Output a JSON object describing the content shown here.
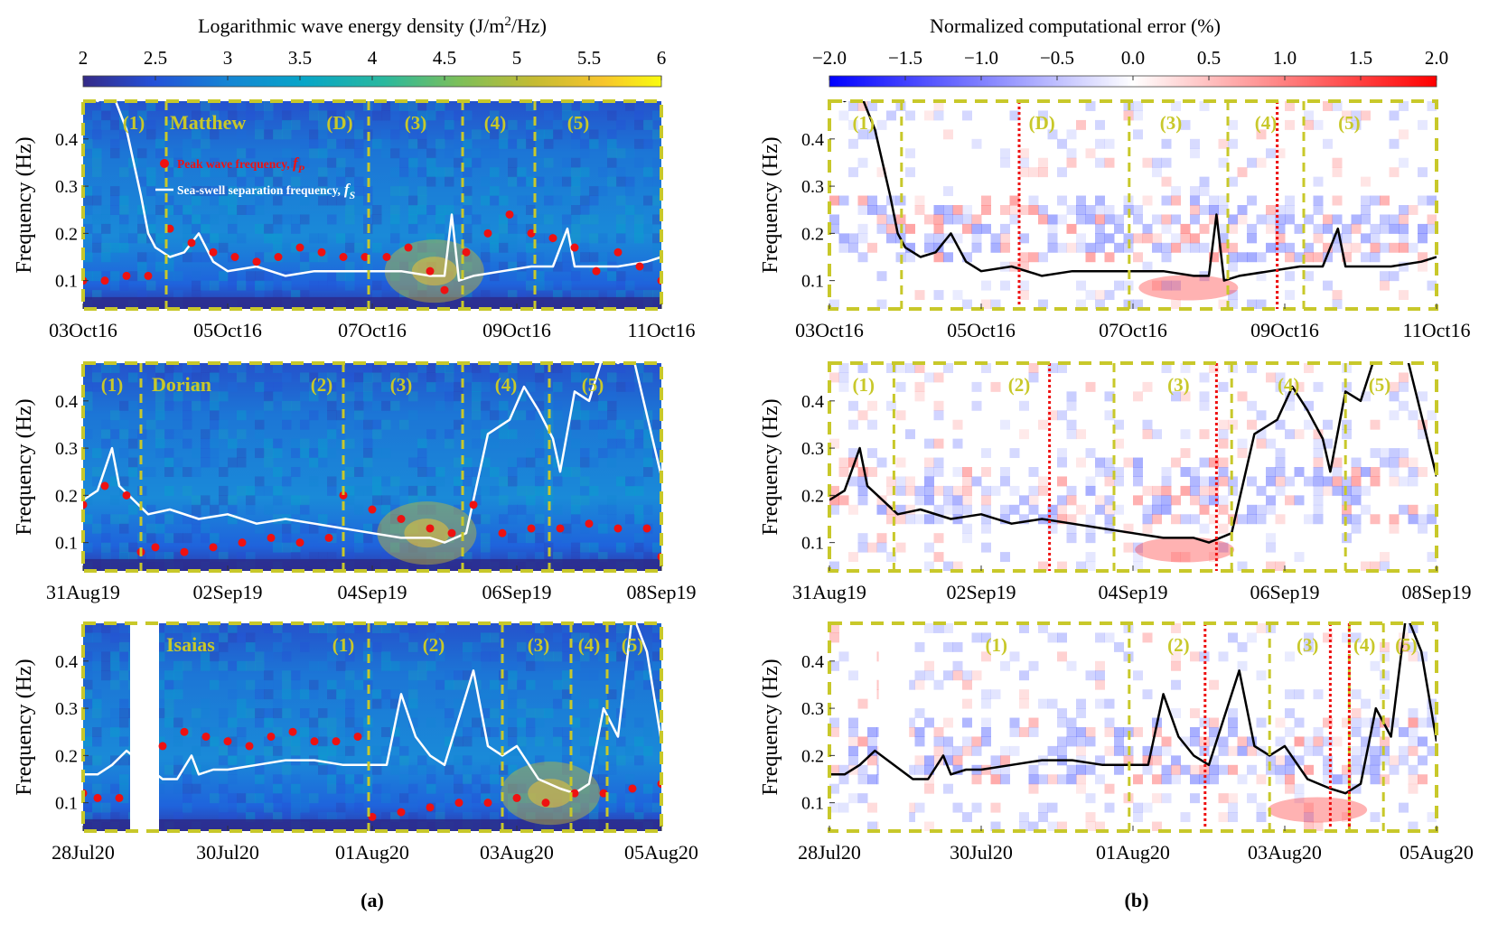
{
  "figure": {
    "left_colorbar": {
      "title_text": "Logarithmic wave energy density (J/m",
      "title_sup": "2",
      "title_tail": "/Hz)",
      "ticks": [
        "2",
        "2.5",
        "3",
        "3.5",
        "4",
        "4.5",
        "5",
        "5.5",
        "6"
      ]
    },
    "right_colorbar": {
      "title": "Normalized computational error (%)",
      "ticks": [
        "−2.0",
        "−1.5",
        "−1.0",
        "−0.5",
        "0.0",
        "0.5",
        "1.0",
        "1.5",
        "2.0"
      ]
    },
    "ylabel": "Frequency (Hz)",
    "yticks": [
      "0.1",
      "0.2",
      "0.3",
      "0.4"
    ],
    "panel_a_label": "(a)",
    "panel_b_label": "(b)",
    "legend": {
      "peak_text": "Peak wave frequency, ",
      "peak_sym": "f",
      "peak_sub": "P",
      "sep_text": "Sea-swell separation frequency,",
      "sep_sym": "f",
      "sep_sub": "S"
    },
    "colors": {
      "frame": "#c8c82a",
      "stage_label": "#c8c82a",
      "peak_marker": "#ee1111",
      "sep_line_a": "#ffffff",
      "sep_line_b": "#000000",
      "red_divider": "#ee1111"
    }
  },
  "chart_data": [
    {
      "type": "heatmap",
      "panel": "a",
      "row": 0,
      "storm": "Matthew",
      "xticks": [
        "03Oct16",
        "05Oct16",
        "07Oct16",
        "09Oct16",
        "11Oct16"
      ],
      "xlim_days": [
        0,
        8
      ],
      "ylim": [
        0.04,
        0.48
      ],
      "stage_boundaries_days": [
        1.85,
        7.85
      ],
      "dividers_days": [
        1.15,
        3.95,
        5.25,
        6.25
      ],
      "stage_labels": [
        {
          "text": "(1)",
          "day": 0.7
        },
        {
          "text": "(D)",
          "day": 3.55
        },
        {
          "text": "(3)",
          "day": 4.6
        },
        {
          "text": "(4)",
          "day": 5.7
        },
        {
          "text": "(5)",
          "day": 6.85
        }
      ],
      "peak_frequency": {
        "x_days": [
          0.0,
          0.3,
          0.6,
          0.9,
          1.2,
          1.5,
          1.8,
          2.1,
          2.4,
          2.7,
          3.0,
          3.3,
          3.6,
          3.9,
          4.2,
          4.5,
          4.8,
          5.0,
          5.3,
          5.6,
          5.9,
          6.2,
          6.5,
          6.8,
          7.1,
          7.4,
          7.7,
          8.0
        ],
        "values": [
          0.1,
          0.1,
          0.11,
          0.11,
          0.21,
          0.18,
          0.16,
          0.15,
          0.14,
          0.15,
          0.17,
          0.16,
          0.15,
          0.15,
          0.15,
          0.17,
          0.12,
          0.08,
          0.16,
          0.2,
          0.24,
          0.2,
          0.19,
          0.17,
          0.12,
          0.16,
          0.13,
          0.1
        ]
      },
      "separation_frequency": {
        "x_days": [
          0.0,
          0.2,
          0.4,
          0.6,
          0.8,
          0.9,
          1.0,
          1.2,
          1.4,
          1.6,
          1.8,
          2.0,
          2.4,
          2.8,
          3.2,
          3.6,
          4.0,
          4.4,
          4.8,
          5.0,
          5.1,
          5.2,
          5.4,
          5.8,
          6.2,
          6.5,
          6.7,
          6.8,
          7.0,
          7.4,
          7.8,
          8.0
        ],
        "values": [
          0.5,
          0.48,
          0.5,
          0.42,
          0.28,
          0.2,
          0.17,
          0.15,
          0.16,
          0.2,
          0.14,
          0.12,
          0.13,
          0.11,
          0.12,
          0.12,
          0.12,
          0.12,
          0.11,
          0.11,
          0.24,
          0.1,
          0.11,
          0.12,
          0.13,
          0.13,
          0.21,
          0.13,
          0.13,
          0.13,
          0.14,
          0.15
        ]
      }
    },
    {
      "type": "heatmap",
      "panel": "a",
      "row": 1,
      "storm": "Dorian",
      "xticks": [
        "31Aug19",
        "02Sep19",
        "04Sep19",
        "06Sep19",
        "08Sep19"
      ],
      "xlim_days": [
        0,
        8
      ],
      "ylim": [
        0.04,
        0.48
      ],
      "stage_boundaries_days": [
        1.85,
        7.85
      ],
      "dividers_days": [
        0.8,
        3.6,
        5.25,
        6.45
      ],
      "stage_labels": [
        {
          "text": "(1)",
          "day": 0.4
        },
        {
          "text": "(2)",
          "day": 3.3
        },
        {
          "text": "(3)",
          "day": 4.4
        },
        {
          "text": "(4)",
          "day": 5.85
        },
        {
          "text": "(5)",
          "day": 7.05
        }
      ],
      "peak_frequency": {
        "x_days": [
          0.0,
          0.3,
          0.6,
          0.8,
          1.0,
          1.4,
          1.8,
          2.2,
          2.6,
          3.0,
          3.4,
          3.6,
          4.0,
          4.4,
          4.8,
          5.1,
          5.4,
          5.8,
          6.2,
          6.6,
          7.0,
          7.4,
          7.8,
          8.0
        ],
        "values": [
          0.18,
          0.22,
          0.2,
          0.08,
          0.09,
          0.08,
          0.09,
          0.1,
          0.11,
          0.1,
          0.11,
          0.2,
          0.17,
          0.15,
          0.13,
          0.12,
          0.18,
          0.12,
          0.13,
          0.13,
          0.14,
          0.13,
          0.13,
          0.07
        ]
      },
      "separation_frequency": {
        "x_days": [
          0.0,
          0.2,
          0.4,
          0.5,
          0.7,
          0.9,
          1.2,
          1.6,
          2.0,
          2.4,
          2.8,
          3.2,
          3.6,
          4.0,
          4.4,
          4.8,
          5.0,
          5.3,
          5.6,
          5.9,
          6.1,
          6.3,
          6.5,
          6.6,
          6.8,
          7.0,
          7.2,
          7.4,
          7.6,
          8.0
        ],
        "values": [
          0.19,
          0.21,
          0.3,
          0.22,
          0.19,
          0.16,
          0.17,
          0.15,
          0.16,
          0.14,
          0.15,
          0.14,
          0.13,
          0.12,
          0.11,
          0.11,
          0.1,
          0.12,
          0.33,
          0.36,
          0.43,
          0.38,
          0.32,
          0.25,
          0.42,
          0.4,
          0.5,
          0.48,
          0.5,
          0.24
        ]
      }
    },
    {
      "type": "heatmap",
      "panel": "a",
      "row": 2,
      "storm": "Isaias",
      "xticks": [
        "28Jul20",
        "30Jul20",
        "01Aug20",
        "03Aug20",
        "05Aug20"
      ],
      "xlim_days": [
        0,
        8
      ],
      "ylim": [
        0.04,
        0.48
      ],
      "data_gap_days": [
        0.65,
        1.05
      ],
      "stage_boundaries_days": [
        0.05,
        7.95
      ],
      "dividers_days": [
        3.95,
        5.8,
        6.75,
        7.25
      ],
      "stage_labels": [
        {
          "text": "(1)",
          "day": 3.6
        },
        {
          "text": "(2)",
          "day": 4.85
        },
        {
          "text": "(3)",
          "day": 6.3
        },
        {
          "text": "(4)",
          "day": 7.0
        },
        {
          "text": "(5)",
          "day": 7.6
        }
      ],
      "peak_frequency": {
        "x_days": [
          0.0,
          0.2,
          0.5,
          1.1,
          1.4,
          1.7,
          2.0,
          2.3,
          2.6,
          2.9,
          3.2,
          3.5,
          3.8,
          4.0,
          4.4,
          4.8,
          5.2,
          5.6,
          6.0,
          6.4,
          6.8,
          7.2,
          7.6,
          8.0
        ],
        "values": [
          0.12,
          0.11,
          0.11,
          0.22,
          0.25,
          0.24,
          0.23,
          0.22,
          0.24,
          0.25,
          0.23,
          0.23,
          0.24,
          0.07,
          0.08,
          0.09,
          0.1,
          0.1,
          0.11,
          0.1,
          0.12,
          0.12,
          0.13,
          0.14
        ]
      },
      "separation_frequency": {
        "x_days": [
          0.0,
          0.2,
          0.4,
          0.6,
          1.1,
          1.3,
          1.5,
          1.6,
          1.8,
          2.0,
          2.4,
          2.8,
          3.2,
          3.6,
          3.9,
          4.2,
          4.4,
          4.6,
          4.8,
          5.0,
          5.4,
          5.6,
          5.8,
          6.0,
          6.3,
          6.6,
          6.8,
          7.0,
          7.2,
          7.4,
          7.6,
          7.8,
          8.0
        ],
        "values": [
          0.16,
          0.16,
          0.18,
          0.21,
          0.15,
          0.15,
          0.2,
          0.16,
          0.17,
          0.17,
          0.18,
          0.19,
          0.19,
          0.18,
          0.18,
          0.18,
          0.33,
          0.24,
          0.2,
          0.18,
          0.38,
          0.22,
          0.2,
          0.22,
          0.15,
          0.13,
          0.12,
          0.14,
          0.3,
          0.24,
          0.5,
          0.42,
          0.23
        ]
      }
    },
    {
      "type": "heatmap",
      "panel": "b",
      "row": 0,
      "xticks": [
        "03Oct16",
        "05Oct16",
        "07Oct16",
        "09Oct16",
        "11Oct16"
      ],
      "xlim_days": [
        0,
        8
      ],
      "ylim": [
        0.04,
        0.48
      ],
      "stage_boundaries_days": [
        1.85,
        7.85
      ],
      "dividers_days": [
        0.95,
        3.95,
        5.25,
        6.25
      ],
      "red_dividers_days": [
        2.5,
        5.9,
        5.9
      ],
      "stage_labels": [
        {
          "text": "(1)",
          "day": 0.45
        },
        {
          "text": "(D)",
          "day": 2.8
        },
        {
          "text": "(3)",
          "day": 4.5
        },
        {
          "text": "(4)",
          "day": 5.75
        },
        {
          "text": "(5)",
          "day": 6.85
        }
      ],
      "separation_frequency": {
        "x_days": [
          0.0,
          0.2,
          0.4,
          0.6,
          0.8,
          0.9,
          1.0,
          1.2,
          1.4,
          1.6,
          1.8,
          2.0,
          2.4,
          2.8,
          3.2,
          3.6,
          4.0,
          4.4,
          4.8,
          5.0,
          5.1,
          5.2,
          5.4,
          5.8,
          6.2,
          6.5,
          6.7,
          6.8,
          7.0,
          7.4,
          7.8,
          8.0
        ],
        "values": [
          0.5,
          0.48,
          0.5,
          0.42,
          0.28,
          0.2,
          0.17,
          0.15,
          0.16,
          0.2,
          0.14,
          0.12,
          0.13,
          0.11,
          0.12,
          0.12,
          0.12,
          0.12,
          0.11,
          0.11,
          0.24,
          0.1,
          0.11,
          0.12,
          0.13,
          0.13,
          0.21,
          0.13,
          0.13,
          0.13,
          0.14,
          0.15
        ]
      }
    },
    {
      "type": "heatmap",
      "panel": "b",
      "row": 1,
      "xticks": [
        "31Aug19",
        "02Sep19",
        "04Sep19",
        "06Sep19",
        "08Sep19"
      ],
      "xlim_days": [
        0,
        8
      ],
      "ylim": [
        0.04,
        0.48
      ],
      "stage_boundaries_days": [
        1.85,
        7.85
      ],
      "dividers_days": [
        0.85,
        3.75,
        5.3,
        6.8
      ],
      "red_dividers_days": [
        2.9,
        5.1
      ],
      "stage_labels": [
        {
          "text": "(1)",
          "day": 0.45
        },
        {
          "text": "(2)",
          "day": 2.5
        },
        {
          "text": "(3)",
          "day": 4.6
        },
        {
          "text": "(4)",
          "day": 6.05
        },
        {
          "text": "(5)",
          "day": 7.25
        }
      ],
      "separation_frequency": {
        "x_days": [
          0.0,
          0.2,
          0.4,
          0.5,
          0.7,
          0.9,
          1.2,
          1.6,
          2.0,
          2.4,
          2.8,
          3.2,
          3.6,
          4.0,
          4.4,
          4.8,
          5.0,
          5.3,
          5.6,
          5.9,
          6.1,
          6.3,
          6.5,
          6.6,
          6.8,
          7.0,
          7.2,
          7.4,
          7.6,
          8.0
        ],
        "values": [
          0.19,
          0.21,
          0.3,
          0.22,
          0.19,
          0.16,
          0.17,
          0.15,
          0.16,
          0.14,
          0.15,
          0.14,
          0.13,
          0.12,
          0.11,
          0.11,
          0.1,
          0.12,
          0.33,
          0.36,
          0.43,
          0.38,
          0.32,
          0.25,
          0.42,
          0.4,
          0.5,
          0.48,
          0.5,
          0.24
        ]
      }
    },
    {
      "type": "heatmap",
      "panel": "b",
      "row": 2,
      "xticks": [
        "28Jul20",
        "30Jul20",
        "01Aug20",
        "03Aug20",
        "05Aug20"
      ],
      "xlim_days": [
        0,
        8
      ],
      "ylim": [
        0.04,
        0.48
      ],
      "data_gap_days": [
        0.65,
        1.05
      ],
      "stage_boundaries_days": [
        0.05,
        7.95
      ],
      "dividers_days": [
        3.95,
        5.8,
        6.85,
        7.3
      ],
      "red_dividers_days": [
        4.95,
        6.6,
        6.85
      ],
      "stage_labels": [
        {
          "text": "(1)",
          "day": 2.2
        },
        {
          "text": "(2)",
          "day": 4.6
        },
        {
          "text": "(3)",
          "day": 6.3
        },
        {
          "text": "(4)",
          "day": 7.05
        },
        {
          "text": "(5)",
          "day": 7.6
        }
      ],
      "separation_frequency": {
        "x_days": [
          0.0,
          0.2,
          0.4,
          0.6,
          1.1,
          1.3,
          1.5,
          1.6,
          1.8,
          2.0,
          2.4,
          2.8,
          3.2,
          3.6,
          3.9,
          4.2,
          4.4,
          4.6,
          4.8,
          5.0,
          5.4,
          5.6,
          5.8,
          6.0,
          6.3,
          6.6,
          6.8,
          7.0,
          7.2,
          7.4,
          7.6,
          7.8,
          8.0
        ],
        "values": [
          0.16,
          0.16,
          0.18,
          0.21,
          0.15,
          0.15,
          0.2,
          0.16,
          0.17,
          0.17,
          0.18,
          0.19,
          0.19,
          0.18,
          0.18,
          0.18,
          0.33,
          0.24,
          0.2,
          0.18,
          0.38,
          0.22,
          0.2,
          0.22,
          0.15,
          0.13,
          0.12,
          0.14,
          0.3,
          0.24,
          0.5,
          0.42,
          0.23
        ]
      }
    }
  ]
}
